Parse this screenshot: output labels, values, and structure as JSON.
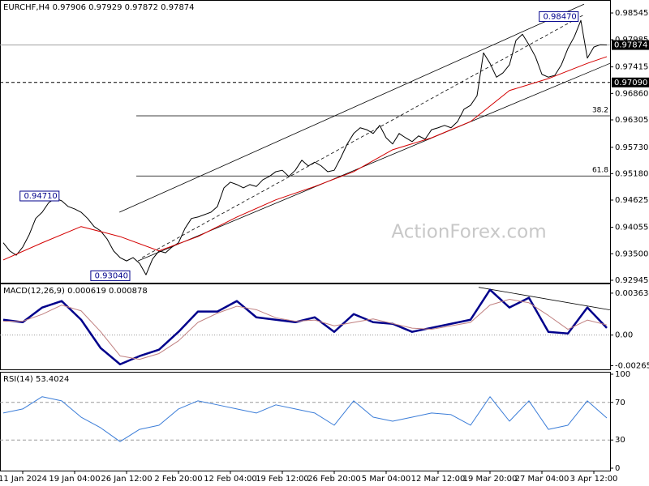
{
  "chart_data": [
    {
      "type": "line",
      "title": "EURCHF,H4  0.97906 0.97929 0.97872 0.97874",
      "watermark": "ActionForex.com",
      "xlim": [
        -0.5,
        93.5
      ],
      "ylim": [
        0.92911,
        0.98783
      ],
      "yticks": [
        0.98545,
        0.97985,
        0.97415,
        {
          "value": 0.9686,
          "label": "0.96860"
        },
        0.96305,
        {
          "value": 0.9573,
          "label": "0.95730"
        },
        {
          "value": 0.9518,
          "label": "0.95180"
        },
        0.94625,
        0.94055,
        {
          "value": 0.935,
          "label": "0.93500"
        },
        0.92945
      ],
      "series": [
        {
          "color": "#000000",
          "width": 1,
          "x": [
            0,
            1,
            2,
            3,
            4,
            5,
            6,
            7,
            8,
            9,
            10,
            11,
            12,
            13,
            14,
            15,
            16,
            17,
            18,
            19,
            20,
            21,
            22,
            23,
            24,
            25,
            26,
            27,
            28,
            29,
            30,
            31,
            32,
            33,
            34,
            35,
            36,
            37,
            38,
            39,
            40,
            41,
            42,
            43,
            44,
            45,
            46,
            47,
            48,
            49,
            50,
            51,
            52,
            53,
            54,
            55,
            56,
            57,
            58,
            59,
            60,
            61,
            62,
            63,
            64,
            65,
            66,
            67,
            68,
            69,
            70,
            71,
            72,
            73,
            74,
            75,
            76,
            77,
            78,
            79,
            80,
            81,
            82,
            83,
            84,
            85,
            86,
            87,
            88,
            89,
            90,
            91,
            92,
            93
          ],
          "values": [
            0.9373,
            0.9356,
            0.9347,
            0.9364,
            0.939,
            0.9424,
            0.9437,
            0.9457,
            0.9466,
            0.9461,
            0.9449,
            0.9444,
            0.9437,
            0.9424,
            0.9407,
            0.9398,
            0.9381,
            0.9356,
            0.9342,
            0.9335,
            0.9342,
            0.933,
            0.9306,
            0.9339,
            0.9356,
            0.9352,
            0.9364,
            0.9373,
            0.9403,
            0.9424,
            0.9427,
            0.9432,
            0.9437,
            0.9449,
            0.9488,
            0.95,
            0.9495,
            0.9488,
            0.9495,
            0.9491,
            0.9505,
            0.9512,
            0.9522,
            0.9525,
            0.9512,
            0.9525,
            0.9546,
            0.9534,
            0.9542,
            0.9534,
            0.9522,
            0.9525,
            0.9551,
            0.958,
            0.9602,
            0.9614,
            0.961,
            0.9602,
            0.9619,
            0.9593,
            0.958,
            0.9602,
            0.9593,
            0.9585,
            0.9597,
            0.959,
            0.961,
            0.9614,
            0.9619,
            0.9614,
            0.9627,
            0.9653,
            0.9661,
            0.9681,
            0.9771,
            0.9749,
            0.972,
            0.9729,
            0.9746,
            0.9797,
            0.981,
            0.9788,
            0.9763,
            0.9726,
            0.972,
            0.9724,
            0.9746,
            0.978,
            0.9805,
            0.9839,
            0.976,
            0.9783,
            0.9788,
            0.97874
          ]
        },
        {
          "color": "#d40000",
          "width": 1,
          "x": [
            0,
            6,
            12,
            18,
            24,
            30,
            36,
            42,
            48,
            54,
            60,
            66,
            72,
            78,
            84,
            90,
            93
          ],
          "values": [
            0.9337,
            0.9373,
            0.9407,
            0.9386,
            0.9356,
            0.9386,
            0.9427,
            0.9463,
            0.9491,
            0.9522,
            0.9568,
            0.9593,
            0.9627,
            0.9692,
            0.9717,
            0.9749,
            0.9763
          ]
        }
      ],
      "trendlines": [
        {
          "style": "solid",
          "x": [
            17.9,
            89.5
          ],
          "values": [
            0.9437,
            0.9873
          ]
        },
        {
          "style": "solid",
          "x": [
            20.75,
            93.5
          ],
          "values": [
            0.9335,
            0.9749
          ]
        },
        {
          "style": "dashed",
          "x": [
            21.4,
            89.5
          ],
          "values": [
            0.9342,
            0.9851
          ]
        }
      ],
      "fib_levels": [
        {
          "value": 0.9639,
          "label": "38.2",
          "x0": 20.5
        },
        {
          "value": 0.9513,
          "label": "61.8",
          "x0": 20.5
        }
      ],
      "price_lines": [
        {
          "value": 0.97874,
          "style": "solid",
          "color": "#a0a0a0"
        },
        {
          "value": 0.9709,
          "label": "0.97090",
          "style": "dashed",
          "color": "#000000"
        }
      ],
      "level_labels": [
        {
          "value": 0.9471,
          "label": "0.94710",
          "x": 8.6
        },
        {
          "value": 0.9304,
          "label": "0.93040",
          "x": 19.5
        },
        {
          "value": 0.9847,
          "label": "0.98470",
          "x": 88.6
        }
      ]
    },
    {
      "type": "line",
      "title": "MACD(12,26,9) 0.000619 0.000878",
      "xlim": [
        -0.5,
        93.5
      ],
      "ylim": [
        -0.0029,
        0.0044
      ],
      "yticks": [
        0.003634,
        {
          "value": 0,
          "label": "0.00",
          "grid": "dotted"
        },
        -0.002652
      ],
      "series": [
        {
          "color": "#00008b",
          "width": 2.5,
          "x": [
            0,
            3,
            6,
            9,
            12,
            15,
            18,
            21,
            24,
            27,
            30,
            33,
            36,
            39,
            42,
            45,
            48,
            51,
            54,
            57,
            60,
            63,
            66,
            69,
            72,
            75,
            78,
            81,
            84,
            87,
            90,
            93
          ],
          "values": [
            0.00133,
            0.00112,
            0.00239,
            0.00295,
            0.00133,
            -0.00112,
            -0.00253,
            -0.00182,
            -0.00126,
            0.00028,
            0.00204,
            0.00204,
            0.00295,
            0.00154,
            0.00133,
            0.00112,
            0.00154,
            0.00028,
            0.00182,
            0.00112,
            0.00098,
            0.00028,
            0.00063,
            0.00098,
            0.00133,
            0.00393,
            0.00239,
            0.00323,
            0.00028,
            0.00014,
            0.00239,
            0.000619
          ]
        },
        {
          "color": "#c08080",
          "width": 1,
          "x": [
            0,
            3,
            6,
            9,
            12,
            15,
            18,
            21,
            24,
            27,
            30,
            33,
            36,
            39,
            42,
            45,
            48,
            51,
            54,
            57,
            60,
            63,
            66,
            69,
            72,
            75,
            78,
            81,
            84,
            87,
            90,
            93
          ],
          "values": [
            0.0012,
            0.0012,
            0.0018,
            0.0026,
            0.0021,
            0.0003,
            -0.0018,
            -0.0021,
            -0.0016,
            -0.0005,
            0.0011,
            0.0019,
            0.0025,
            0.0022,
            0.0015,
            0.0012,
            0.0013,
            0.0008,
            0.0011,
            0.0014,
            0.001,
            0.0006,
            0.0005,
            0.0008,
            0.0011,
            0.0026,
            0.0031,
            0.0028,
            0.0017,
            0.0005,
            0.0013,
            0.000878
          ]
        }
      ],
      "trendlines": [
        {
          "style": "solid",
          "x": [
            73.25,
            93.5
          ],
          "values": [
            0.00414,
            0.00218
          ]
        }
      ]
    },
    {
      "type": "line",
      "title": "RSI(14) 53.4024",
      "xlim": [
        -0.5,
        93.5
      ],
      "ylim": [
        0,
        100
      ],
      "yticks": [
        100,
        {
          "value": 70,
          "label": "70",
          "grid": "dashed"
        },
        {
          "value": 30,
          "label": "30",
          "grid": "dashed"
        },
        0
      ],
      "xticks": [
        {
          "value": 3,
          "label": "11 Jan 2024"
        },
        {
          "value": 11,
          "label": "19 Jan 04:00"
        },
        {
          "value": 19,
          "label": "26 Jan 12:00"
        },
        {
          "value": 27,
          "label": "2 Feb 20:00"
        },
        {
          "value": 35,
          "label": "12 Feb 04:00"
        },
        {
          "value": 43,
          "label": "19 Feb 12:00"
        },
        {
          "value": 51,
          "label": "26 Feb 20:00"
        },
        {
          "value": 59,
          "label": "5 Mar 04:00"
        },
        {
          "value": 67,
          "label": "12 Mar 12:00"
        },
        {
          "value": 75,
          "label": "19 Mar 20:00"
        },
        {
          "value": 83,
          "label": "27 Mar 04:00"
        },
        {
          "value": 91,
          "label": "3 Apr 12:00"
        }
      ],
      "series": [
        {
          "color": "#3b7dd8",
          "width": 1,
          "x": [
            0,
            3,
            6,
            9,
            12,
            15,
            18,
            21,
            24,
            27,
            30,
            33,
            36,
            39,
            42,
            45,
            48,
            51,
            54,
            57,
            60,
            63,
            66,
            69,
            72,
            75,
            78,
            81,
            84,
            87,
            90,
            93
          ],
          "values": [
            58.7,
            63,
            76.1,
            71.7,
            54.3,
            43,
            28.3,
            41.3,
            45.7,
            63,
            71.7,
            67.4,
            63,
            58.7,
            67.4,
            63,
            58.7,
            45.7,
            71.7,
            54.3,
            50,
            54.3,
            58.7,
            57,
            45.7,
            76.1,
            50,
            71.7,
            41.3,
            45.7,
            71.7,
            53.4024
          ]
        }
      ]
    }
  ]
}
